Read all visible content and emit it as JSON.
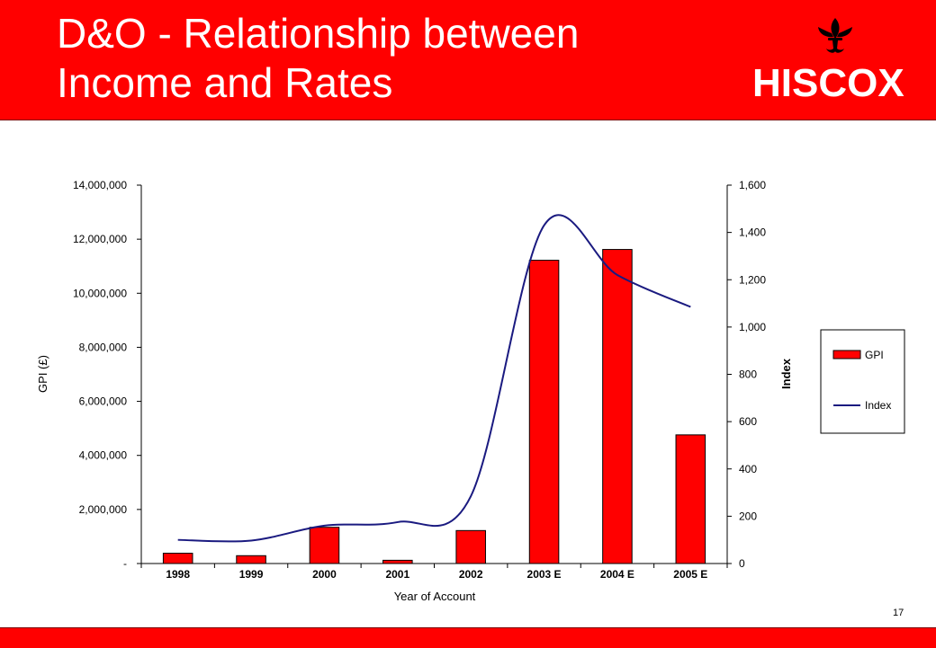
{
  "header": {
    "title_line1": "D&O - Relationship between",
    "title_line2": "Income and Rates",
    "logo_text": "HISCOX",
    "logo_icon": "fleur-de-lis-icon"
  },
  "page_number": "17",
  "colors": {
    "brand_red": "#ff0000",
    "bar_fill": "#ff0000",
    "line_color": "#1a1a80",
    "white": "#ffffff"
  },
  "chart_data": {
    "type": "bar",
    "categories": [
      "1998",
      "1999",
      "2000",
      "2001",
      "2002",
      "2003 E",
      "2004 E",
      "2005 E"
    ],
    "series": [
      {
        "name": "GPI",
        "type": "bar",
        "axis": "left",
        "values": [
          380000,
          290000,
          1340000,
          120000,
          1220000,
          11220000,
          11620000,
          4760000
        ]
      },
      {
        "name": "Index",
        "type": "line",
        "axis": "right",
        "smooth": true,
        "values": [
          100,
          97,
          160,
          175,
          285,
          1430,
          1220,
          1085
        ]
      }
    ],
    "xlabel": "Year of Account",
    "ylabel": "GPI (£)",
    "y2label": "Index",
    "ylim": [
      0,
      14000000
    ],
    "y2lim": [
      0,
      1600
    ],
    "yticks": [
      "-",
      "2,000,000",
      "4,000,000",
      "6,000,000",
      "8,000,000",
      "10,000,000",
      "12,000,000",
      "14,000,000"
    ],
    "y2ticks": [
      "0",
      "200",
      "400",
      "600",
      "800",
      "1,000",
      "1,200",
      "1,400",
      "1,600"
    ],
    "grid": false,
    "legend": [
      "GPI",
      "Index"
    ],
    "legend_position": "right"
  }
}
